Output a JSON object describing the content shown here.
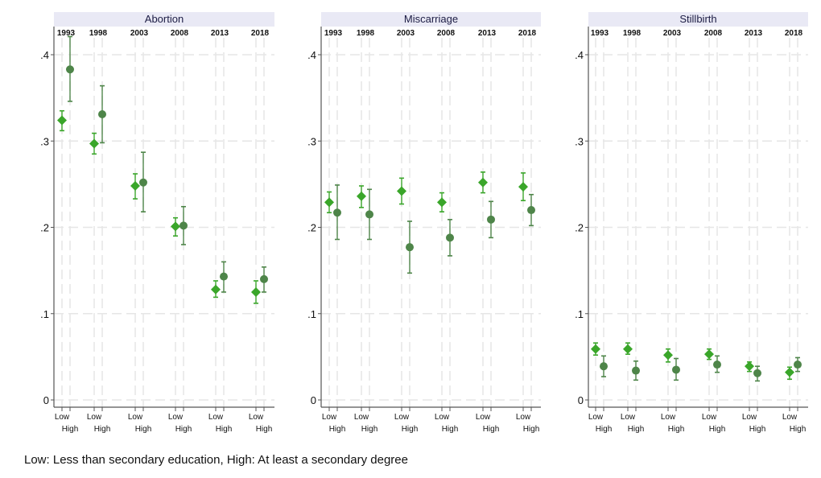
{
  "colors": {
    "low": "#3aa62a",
    "high": "#4e8549",
    "header_bg": "#e9e9f5",
    "header_text": "#1c1c44",
    "grid": "#e6e6e6"
  },
  "note": "Low: Less than secondary education, High: At least a secondary degree",
  "chart_data": [
    {
      "type": "scatter",
      "title": "Abortion",
      "years": [
        "1993",
        "1998",
        "2003",
        "2008",
        "2013",
        "2018"
      ],
      "group_labels": [
        "Low",
        "High"
      ],
      "ylim": [
        0,
        0.43
      ],
      "yticks": [
        0,
        0.1,
        0.2,
        0.3,
        0.4
      ],
      "ytick_labels": [
        "0",
        ".1",
        ".2",
        ".3",
        ".4"
      ],
      "low": {
        "est": [
          0.324,
          0.297,
          0.248,
          0.201,
          0.128,
          0.125
        ],
        "lo": [
          0.312,
          0.285,
          0.233,
          0.19,
          0.119,
          0.112
        ],
        "hi": [
          0.335,
          0.309,
          0.262,
          0.211,
          0.138,
          0.138
        ]
      },
      "high": {
        "est": [
          0.383,
          0.331,
          0.252,
          0.202,
          0.143,
          0.14
        ],
        "lo": [
          0.346,
          0.298,
          0.218,
          0.18,
          0.125,
          0.125
        ],
        "hi": [
          0.421,
          0.364,
          0.287,
          0.224,
          0.16,
          0.154
        ]
      }
    },
    {
      "type": "scatter",
      "title": "Miscarriage",
      "years": [
        "1993",
        "1998",
        "2003",
        "2008",
        "2013",
        "2018"
      ],
      "group_labels": [
        "Low",
        "High"
      ],
      "ylim": [
        0,
        0.43
      ],
      "yticks": [
        0,
        0.1,
        0.2,
        0.3,
        0.4
      ],
      "ytick_labels": [
        "0",
        ".1",
        ".2",
        ".3",
        ".4"
      ],
      "low": {
        "est": [
          0.229,
          0.236,
          0.242,
          0.229,
          0.252,
          0.247
        ],
        "lo": [
          0.217,
          0.223,
          0.227,
          0.218,
          0.24,
          0.231
        ],
        "hi": [
          0.241,
          0.248,
          0.257,
          0.24,
          0.264,
          0.263
        ]
      },
      "high": {
        "est": [
          0.217,
          0.215,
          0.177,
          0.188,
          0.209,
          0.22
        ],
        "lo": [
          0.186,
          0.186,
          0.147,
          0.167,
          0.188,
          0.202
        ],
        "hi": [
          0.249,
          0.244,
          0.207,
          0.209,
          0.23,
          0.238
        ]
      }
    },
    {
      "type": "scatter",
      "title": "Stillbirth",
      "years": [
        "1993",
        "1998",
        "2003",
        "2008",
        "2013",
        "2018"
      ],
      "group_labels": [
        "Low",
        "High"
      ],
      "ylim": [
        0,
        0.43
      ],
      "yticks": [
        0,
        0.1,
        0.2,
        0.3,
        0.4
      ],
      "ytick_labels": [
        "0",
        ".1",
        ".2",
        ".3",
        ".4"
      ],
      "low": {
        "est": [
          0.059,
          0.059,
          0.052,
          0.053,
          0.039,
          0.032
        ],
        "lo": [
          0.052,
          0.053,
          0.044,
          0.047,
          0.033,
          0.024
        ],
        "hi": [
          0.066,
          0.066,
          0.059,
          0.059,
          0.044,
          0.038
        ]
      },
      "high": {
        "est": [
          0.039,
          0.034,
          0.035,
          0.041,
          0.031,
          0.041
        ],
        "lo": [
          0.027,
          0.023,
          0.023,
          0.032,
          0.022,
          0.033
        ],
        "hi": [
          0.051,
          0.045,
          0.048,
          0.051,
          0.039,
          0.049
        ]
      }
    }
  ]
}
